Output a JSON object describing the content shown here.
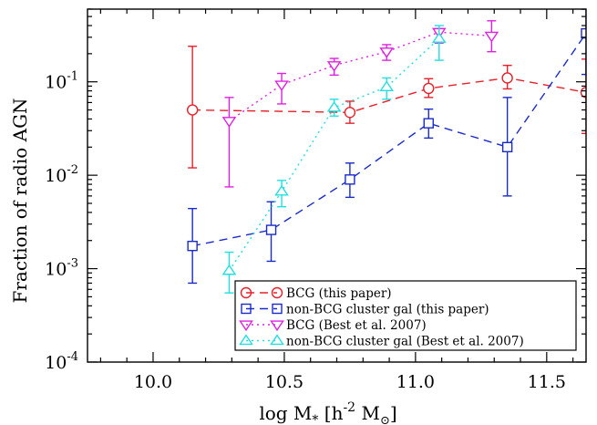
{
  "chart_data": {
    "type": "line",
    "xlabel_parts": {
      "main": "log M",
      "sub": "*",
      "mid": " [h",
      "sup": "-2",
      "end": " M",
      "sun": "⊙",
      "close": "]"
    },
    "ylabel": "Fraction of radio AGN",
    "xlim": [
      9.75,
      11.65
    ],
    "ylim": [
      0.0001,
      0.6
    ],
    "yscale": "log",
    "x_ticks": [
      10.0,
      10.5,
      11.0,
      11.5
    ],
    "x_tick_labels": [
      "10.0",
      "10.5",
      "11.0",
      "11.5"
    ],
    "y_ticks": [
      0.0001,
      0.001,
      0.01,
      0.1
    ],
    "y_tick_labels": [
      {
        "base": "10",
        "exp": "-4"
      },
      {
        "base": "10",
        "exp": "-3"
      },
      {
        "base": "10",
        "exp": "-2"
      },
      {
        "base": "10",
        "exp": "-1"
      }
    ],
    "legend_position": "bottom-right",
    "series": [
      {
        "name": "BCG (this paper)",
        "color": "#e8202a",
        "marker": "circle",
        "line": "dashed",
        "x": [
          10.15,
          10.75,
          11.05,
          11.35,
          11.65
        ],
        "y": [
          0.05,
          0.047,
          0.085,
          0.11,
          0.077
        ],
        "err_low": [
          0.012,
          0.036,
          0.068,
          0.084,
          0.028
        ],
        "err_high": [
          0.24,
          0.062,
          0.108,
          0.15,
          0.175
        ]
      },
      {
        "name": "non-BCG cluster gal (this paper)",
        "color": "#1a2cc8",
        "marker": "square",
        "line": "dashed",
        "x": [
          10.15,
          10.45,
          10.75,
          11.05,
          11.35,
          11.65
        ],
        "y": [
          0.00175,
          0.0026,
          0.009,
          0.036,
          0.02,
          0.33
        ],
        "err_low": [
          0.0007,
          0.0012,
          0.0058,
          0.025,
          0.006,
          0.12
        ],
        "err_high": [
          0.0044,
          0.0052,
          0.0135,
          0.051,
          0.068,
          0.6
        ]
      },
      {
        "name": "BCG (Best et al. 2007)",
        "color": "#e020e0",
        "marker": "triangle-down",
        "line": "dotted",
        "x": [
          10.29,
          10.49,
          10.69,
          10.89,
          11.09,
          11.29
        ],
        "y": [
          0.038,
          0.093,
          0.15,
          0.21,
          0.34,
          0.31
        ],
        "err_low": [
          0.0075,
          0.058,
          0.118,
          0.17,
          0.26,
          0.21
        ],
        "err_high": [
          0.068,
          0.123,
          0.178,
          0.25,
          0.37,
          0.45
        ]
      },
      {
        "name": "non-BCG cluster gal (Best et al. 2007)",
        "color": "#20e0e0",
        "marker": "triangle-up",
        "line": "dotted",
        "x": [
          10.29,
          10.49,
          10.69,
          10.89,
          11.09
        ],
        "y": [
          0.00095,
          0.0067,
          0.053,
          0.088,
          0.29
        ],
        "err_low": [
          0.00055,
          0.0046,
          0.043,
          0.065,
          0.17
        ],
        "err_high": [
          0.0015,
          0.0088,
          0.065,
          0.11,
          0.4
        ]
      }
    ]
  }
}
